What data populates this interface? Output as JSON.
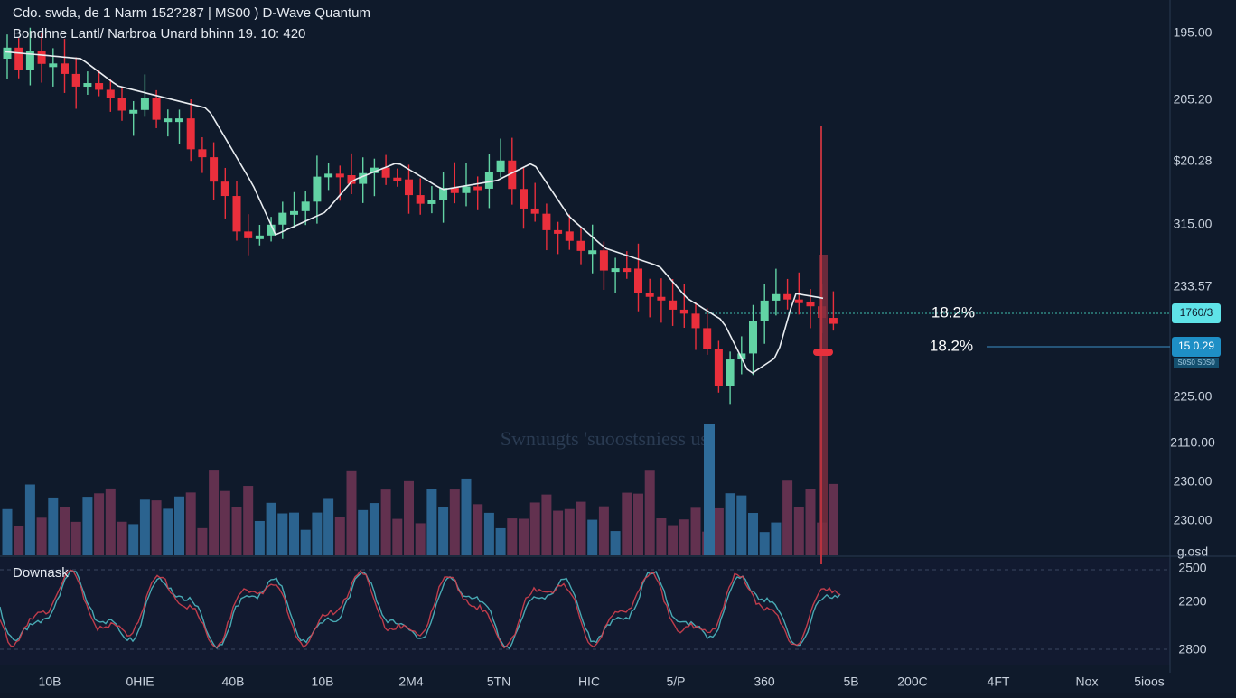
{
  "header": {
    "line1": "Cdo. swda, de 1 Narm 152?287 | MS00 ) D-Wave Quantum",
    "line2": "Bondhne Lantl/ Narbroa Unard bhinn 19. 10: 420"
  },
  "price_axis": [
    "195.00",
    "205.20",
    "$20.28",
    "315.00",
    "233.57",
    "225.00",
    "2110.00",
    "230.00",
    "230.00",
    "g.osd"
  ],
  "badges": {
    "upper": "1760/3",
    "lower": "15 0.29",
    "lower_sub": "S0S0 S0S0"
  },
  "percent_labels": [
    "18.2%",
    "18.2%"
  ],
  "watermark": "Swnuugts 'suoostsniess ust",
  "indicator": {
    "label": "Downask",
    "axis": [
      "2500",
      "2200",
      "2800"
    ]
  },
  "time_axis": [
    "10B",
    "0HIE",
    "40B",
    "10B",
    "2M4",
    "5TN",
    "HIC",
    "5/P",
    "360",
    "5B",
    "200C",
    "4FT",
    "Nox",
    "5ioos"
  ]
}
